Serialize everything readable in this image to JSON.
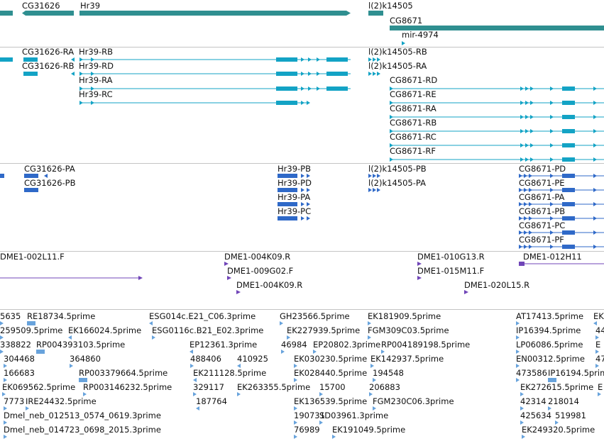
{
  "colors": {
    "gene": "#2f8f90",
    "mrna": "#13a3c5",
    "protein": "#2f69c8",
    "clone": "#7045b8",
    "est": "#68a3dc",
    "separator": "#c4c4c4"
  },
  "tracks": {
    "genes": {
      "labels": [
        "CG31626",
        "Hr39",
        "l(2)k14505",
        "CG8671",
        "mir-4974"
      ]
    },
    "transcripts": {
      "labels": [
        "CG31626-RA",
        "Hr39-RB",
        "CG31626-RB",
        "Hr39-RD",
        "Hr39-RA",
        "Hr39-RC",
        "l(2)k14505-RB",
        "l(2)k14505-RA",
        "CG8671-RD",
        "CG8671-RE",
        "CG8671-RA",
        "CG8671-RB",
        "CG8671-RC",
        "CG8671-RF"
      ]
    },
    "proteins": {
      "labels": [
        "CG31626-PA",
        "CG31626-PB",
        "Hr39-PB",
        "Hr39-PD",
        "Hr39-PA",
        "Hr39-PC",
        "l(2)k14505-PB",
        "l(2)k14505-PA",
        "CG8671-PD",
        "CG8671-PE",
        "CG8671-PA",
        "CG8671-PB",
        "CG8671-PC",
        "CG8671-PF"
      ]
    },
    "clones": {
      "labels": [
        "DME1-002L11.F",
        "DME1-004K09.R",
        "DME1-009G02.F",
        "DME1-004K09.R",
        "DME1-010G13.R",
        "DME1-015M11.F",
        "DME1-020L15.R",
        "DME1-012H11"
      ]
    },
    "ests": {
      "labels": [
        "5635",
        "RE18734.5prime",
        "ESG014c.E21_C06.3prime",
        "GH23566.5prime",
        "EK181909.5prime",
        "AT17413.5prime",
        "EK",
        "259509.5prime",
        "EK166024.5prime",
        "ESG0116c.B21_E02.3prime",
        "EK227939.5prime",
        "FGM309C03.5prime",
        "IP16394.5prime",
        "44",
        "338822",
        "RP004393103.5prime",
        "EP12361.3prime",
        "46984",
        "EP20802.3prime",
        "RP004189198.5prime",
        "LP06086.5prime",
        "E",
        "304468",
        "364860",
        "488406",
        "410925",
        "EK030230.5prime",
        "EK142937.5prime",
        "EN00312.5prime",
        "47",
        "166683",
        "RP003379664.5prime",
        "EK211128.5prime",
        "EK028440.5prime",
        "194548",
        "473586",
        "IP16194.5prime",
        "EK069562.5prime",
        "RP003146232.5prime",
        "329117",
        "EK263355.5prime",
        "15700",
        "206883",
        "EK272615.5prime",
        "E",
        "7773",
        "IRE24432.5prime",
        "187764",
        "EK136539.5prime",
        "FGM230C06.3prime",
        "42314",
        "218014",
        "Dmel_neb_012513_0574_0619.3prime",
        "190731",
        "SD03961.3prime",
        "425634",
        "519981",
        "Dmel_neb_014723_0698_2015.3prime",
        "76989",
        "EK191049.5prime",
        "EK249320.5prime"
      ]
    }
  }
}
